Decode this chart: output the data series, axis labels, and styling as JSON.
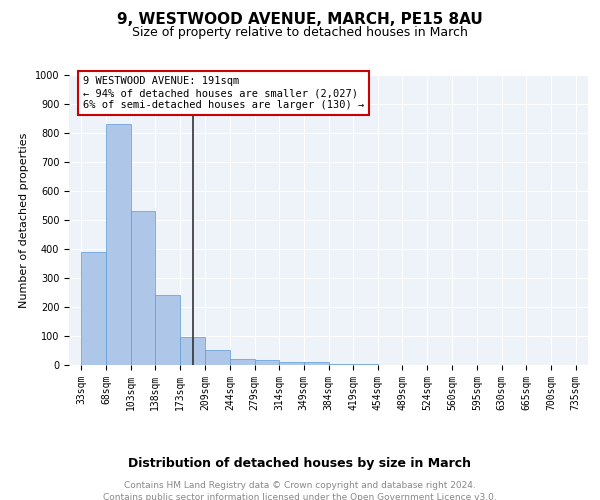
{
  "title": "9, WESTWOOD AVENUE, MARCH, PE15 8AU",
  "subtitle": "Size of property relative to detached houses in March",
  "xlabel": "Distribution of detached houses by size in March",
  "ylabel": "Number of detached properties",
  "bar_color": "#aec6e8",
  "bar_edge_color": "#5b9bd5",
  "background_color": "#eef3fa",
  "grid_color": "#ffffff",
  "bin_edges": [
    33,
    68,
    103,
    138,
    173,
    209,
    244,
    279,
    314,
    349,
    384,
    419,
    454,
    489,
    524,
    560,
    595,
    630,
    665,
    700,
    735
  ],
  "bar_heights": [
    390,
    830,
    530,
    240,
    97,
    53,
    20,
    17,
    12,
    10,
    4,
    2,
    1,
    1,
    0,
    0,
    0,
    0,
    0,
    0
  ],
  "ylim": [
    0,
    1000
  ],
  "yticks": [
    0,
    100,
    200,
    300,
    400,
    500,
    600,
    700,
    800,
    900,
    1000
  ],
  "property_size": 191,
  "annotation_text": "9 WESTWOOD AVENUE: 191sqm\n← 94% of detached houses are smaller (2,027)\n6% of semi-detached houses are larger (130) →",
  "annotation_box_color": "#cc0000",
  "vline_x": 191,
  "footer_text": "Contains HM Land Registry data © Crown copyright and database right 2024.\nContains public sector information licensed under the Open Government Licence v3.0.",
  "title_fontsize": 11,
  "subtitle_fontsize": 9,
  "annotation_fontsize": 7.5,
  "tick_fontsize": 7,
  "ylabel_fontsize": 8,
  "xlabel_fontsize": 9,
  "footer_fontsize": 6.5
}
